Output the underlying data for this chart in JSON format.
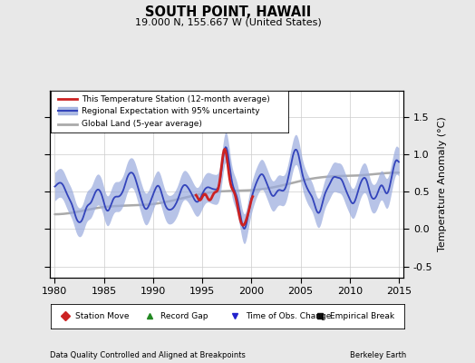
{
  "title": "SOUTH POINT, HAWAII",
  "subtitle": "19.000 N, 155.667 W (United States)",
  "ylabel": "Temperature Anomaly (°C)",
  "xlabel_left": "Data Quality Controlled and Aligned at Breakpoints",
  "xlabel_right": "Berkeley Earth",
  "ylim": [
    -0.65,
    1.85
  ],
  "xlim": [
    1979.5,
    2015.5
  ],
  "yticks": [
    -0.5,
    0.0,
    0.5,
    1.0,
    1.5
  ],
  "xticks": [
    1980,
    1985,
    1990,
    1995,
    2000,
    2005,
    2010,
    2015
  ],
  "legend_line1": "This Temperature Station (12-month average)",
  "legend_line2": "Regional Expectation with 95% uncertainty",
  "legend_line3": "Global Land (5-year average)",
  "legend_marker1": "Station Move",
  "legend_marker2": "Record Gap",
  "legend_marker3": "Time of Obs. Change",
  "legend_marker4": "Empirical Break",
  "bg_color": "#e8e8e8",
  "plot_bg_color": "#ffffff",
  "regional_color": "#3344bb",
  "regional_fill_color": "#99aadd",
  "station_color": "#cc2222",
  "global_color": "#aaaaaa",
  "grid_color": "#cccccc"
}
